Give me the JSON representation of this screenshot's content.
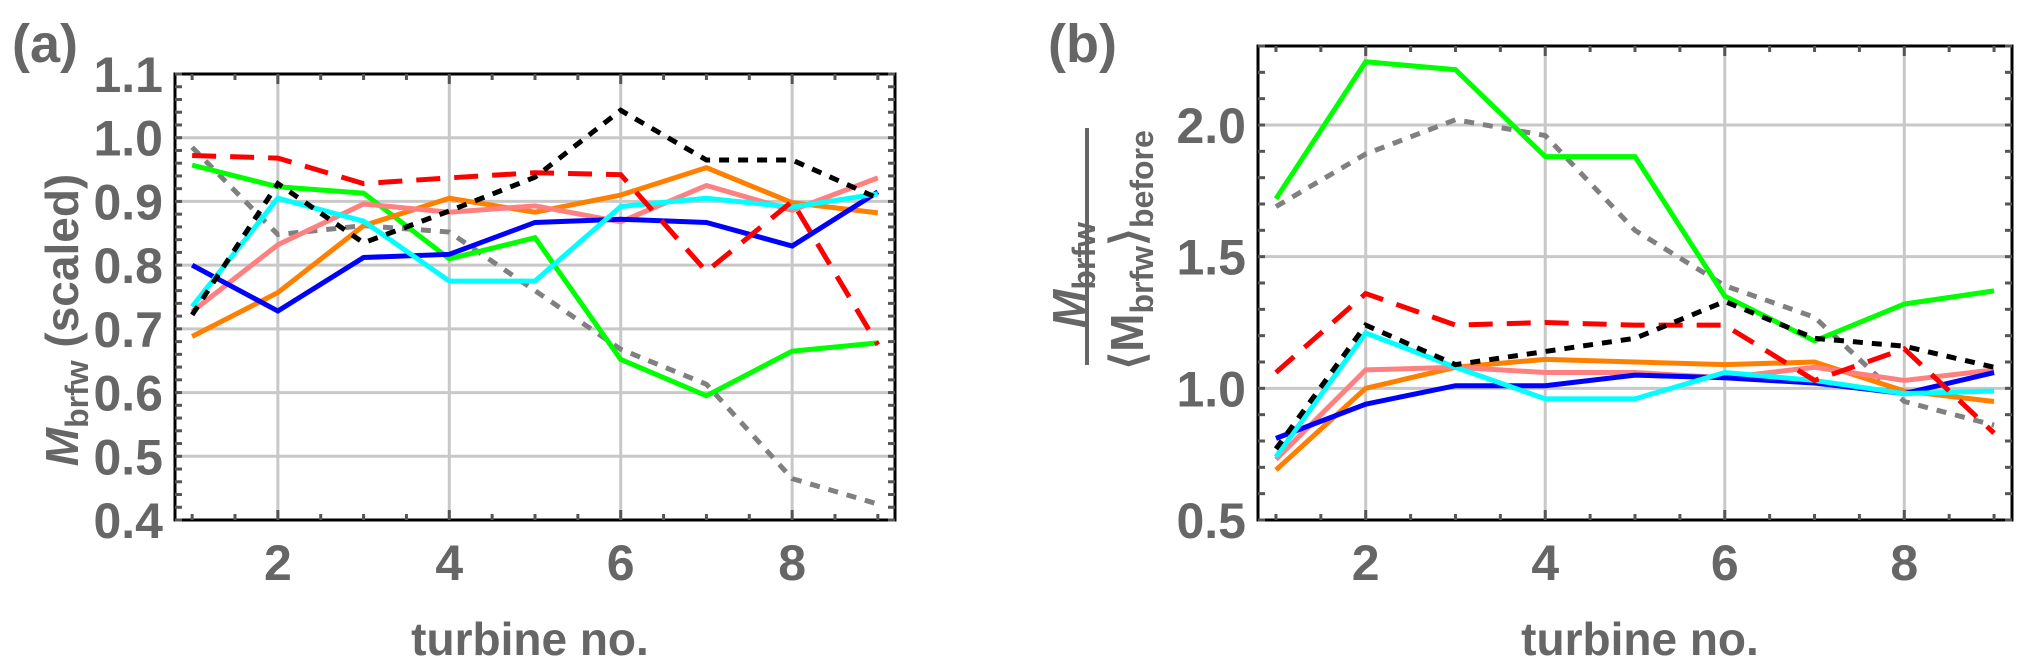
{
  "chart_data": [
    {
      "type": "line",
      "panel_label": "(a)",
      "title": "",
      "xlabel": "turbine no.",
      "ylabel": {
        "main": "M",
        "sub": "brfw",
        "suffix": " (scaled)"
      },
      "xlim": [
        0.8,
        9.2
      ],
      "ylim": [
        0.4,
        1.1
      ],
      "xticks": [
        2,
        4,
        6,
        8
      ],
      "xtick_labels": [
        "2",
        "4",
        "6",
        "8"
      ],
      "yticks": [
        0.4,
        0.5,
        0.6,
        0.7,
        0.8,
        0.9,
        1.0,
        1.1
      ],
      "ytick_labels": [
        "0.4",
        "0.5",
        "0.6",
        "0.7",
        "0.8",
        "0.9",
        "1.0",
        "1.1"
      ],
      "grid": true,
      "x": [
        1,
        2,
        3,
        4,
        5,
        6,
        7,
        8,
        9
      ],
      "series": [
        {
          "name": "gray-dotted",
          "color": "#808080",
          "style": "dotted",
          "values": [
            0.985,
            0.848,
            0.862,
            0.852,
            0.76,
            0.668,
            0.613,
            0.465,
            0.425
          ]
        },
        {
          "name": "green",
          "color": "#00ff00",
          "style": "solid",
          "values": [
            0.957,
            0.923,
            0.913,
            0.81,
            0.843,
            0.652,
            0.595,
            0.665,
            0.678
          ]
        },
        {
          "name": "orange",
          "color": "#ff8000",
          "style": "solid",
          "values": [
            0.688,
            0.757,
            0.862,
            0.905,
            0.883,
            0.91,
            0.953,
            0.898,
            0.882
          ]
        },
        {
          "name": "pink",
          "color": "#ff8080",
          "style": "solid",
          "values": [
            0.727,
            0.832,
            0.896,
            0.883,
            0.893,
            0.868,
            0.925,
            0.886,
            0.937
          ]
        },
        {
          "name": "blue",
          "color": "#0000ff",
          "style": "solid",
          "values": [
            0.8,
            0.728,
            0.812,
            0.817,
            0.867,
            0.872,
            0.867,
            0.83,
            0.915
          ]
        },
        {
          "name": "cyan",
          "color": "#00ffff",
          "style": "solid",
          "values": [
            0.735,
            0.905,
            0.869,
            0.775,
            0.775,
            0.892,
            0.905,
            0.891,
            0.912
          ]
        },
        {
          "name": "red-dashed",
          "color": "#ff0000",
          "style": "dashed",
          "values": [
            0.972,
            0.968,
            0.928,
            0.937,
            0.945,
            0.942,
            0.79,
            0.9,
            0.675
          ]
        },
        {
          "name": "black-dotted",
          "color": "#000000",
          "style": "dotted",
          "values": [
            0.722,
            0.928,
            0.835,
            0.885,
            0.938,
            1.043,
            0.965,
            0.965,
            0.905
          ]
        }
      ]
    },
    {
      "type": "line",
      "panel_label": "(b)",
      "title": "",
      "xlabel": "turbine no.",
      "ylabel": {
        "numerator_main": "M",
        "numerator_sub": "brfw",
        "denominator_main": "⟨M",
        "denominator_sub1": "brfw",
        "denominator_close": "⟩",
        "denominator_sub2": "before"
      },
      "xlim": [
        0.8,
        9.2
      ],
      "ylim": [
        0.5,
        2.3
      ],
      "xticks": [
        2,
        4,
        6,
        8
      ],
      "xtick_labels": [
        "2",
        "4",
        "6",
        "8"
      ],
      "yticks": [
        0.5,
        1.0,
        1.5,
        2.0
      ],
      "ytick_labels": [
        "0.5",
        "1.0",
        "1.5",
        "2.0"
      ],
      "grid": true,
      "x": [
        1,
        2,
        3,
        4,
        5,
        6,
        7,
        8,
        9
      ],
      "series": [
        {
          "name": "gray-dotted",
          "color": "#808080",
          "style": "dotted",
          "values": [
            1.69,
            1.89,
            2.02,
            1.96,
            1.6,
            1.39,
            1.27,
            0.95,
            0.86
          ]
        },
        {
          "name": "green",
          "color": "#00ff00",
          "style": "solid",
          "values": [
            1.72,
            2.24,
            2.21,
            1.88,
            1.88,
            1.35,
            1.18,
            1.32,
            1.37
          ]
        },
        {
          "name": "orange",
          "color": "#ff8000",
          "style": "solid",
          "values": [
            0.69,
            1.0,
            1.08,
            1.11,
            1.1,
            1.09,
            1.1,
            0.99,
            0.95
          ]
        },
        {
          "name": "pink",
          "color": "#ff8080",
          "style": "solid",
          "values": [
            0.73,
            1.07,
            1.08,
            1.06,
            1.06,
            1.04,
            1.08,
            1.03,
            1.07
          ]
        },
        {
          "name": "blue",
          "color": "#0000ff",
          "style": "solid",
          "values": [
            0.81,
            0.94,
            1.01,
            1.01,
            1.05,
            1.04,
            1.02,
            0.98,
            1.06
          ]
        },
        {
          "name": "cyan",
          "color": "#00ffff",
          "style": "solid",
          "values": [
            0.74,
            1.21,
            1.08,
            0.96,
            0.96,
            1.06,
            1.03,
            0.98,
            0.99
          ]
        },
        {
          "name": "red-dashed",
          "color": "#ff0000",
          "style": "dashed",
          "values": [
            1.06,
            1.36,
            1.24,
            1.25,
            1.24,
            1.24,
            1.03,
            1.15,
            0.83
          ]
        },
        {
          "name": "black-dotted",
          "color": "#000000",
          "style": "dotted",
          "values": [
            0.77,
            1.24,
            1.09,
            1.14,
            1.19,
            1.33,
            1.19,
            1.16,
            1.08
          ]
        }
      ]
    }
  ]
}
